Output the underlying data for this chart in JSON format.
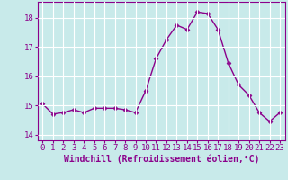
{
  "hours": [
    0,
    1,
    2,
    3,
    4,
    5,
    6,
    7,
    8,
    9,
    10,
    11,
    12,
    13,
    14,
    15,
    16,
    17,
    18,
    19,
    20,
    21,
    22,
    23
  ],
  "values": [
    15.05,
    14.7,
    14.75,
    14.85,
    14.75,
    14.9,
    14.9,
    14.9,
    14.85,
    14.75,
    15.5,
    16.6,
    17.25,
    17.75,
    17.6,
    18.2,
    18.15,
    17.6,
    16.45,
    15.7,
    15.35,
    14.75,
    14.45,
    14.75
  ],
  "line_color": "#8b008b",
  "marker": "D",
  "marker_size": 2.5,
  "bg_color": "#c8eaea",
  "grid_color": "#b0d8d8",
  "xlabel": "Windchill (Refroidissement éolien,°C)",
  "ylim": [
    13.8,
    18.55
  ],
  "xlim": [
    -0.5,
    23.5
  ],
  "yticks": [
    14,
    15,
    16,
    17,
    18
  ],
  "xticks": [
    0,
    1,
    2,
    3,
    4,
    5,
    6,
    7,
    8,
    9,
    10,
    11,
    12,
    13,
    14,
    15,
    16,
    17,
    18,
    19,
    20,
    21,
    22,
    23
  ],
  "xtick_labels": [
    "0",
    "1",
    "2",
    "3",
    "4",
    "5",
    "6",
    "7",
    "8",
    "9",
    "10",
    "11",
    "12",
    "13",
    "14",
    "15",
    "16",
    "17",
    "18",
    "19",
    "20",
    "21",
    "22",
    "23"
  ],
  "tick_fontsize": 6.5,
  "xlabel_fontsize": 7,
  "line_width": 1.0
}
